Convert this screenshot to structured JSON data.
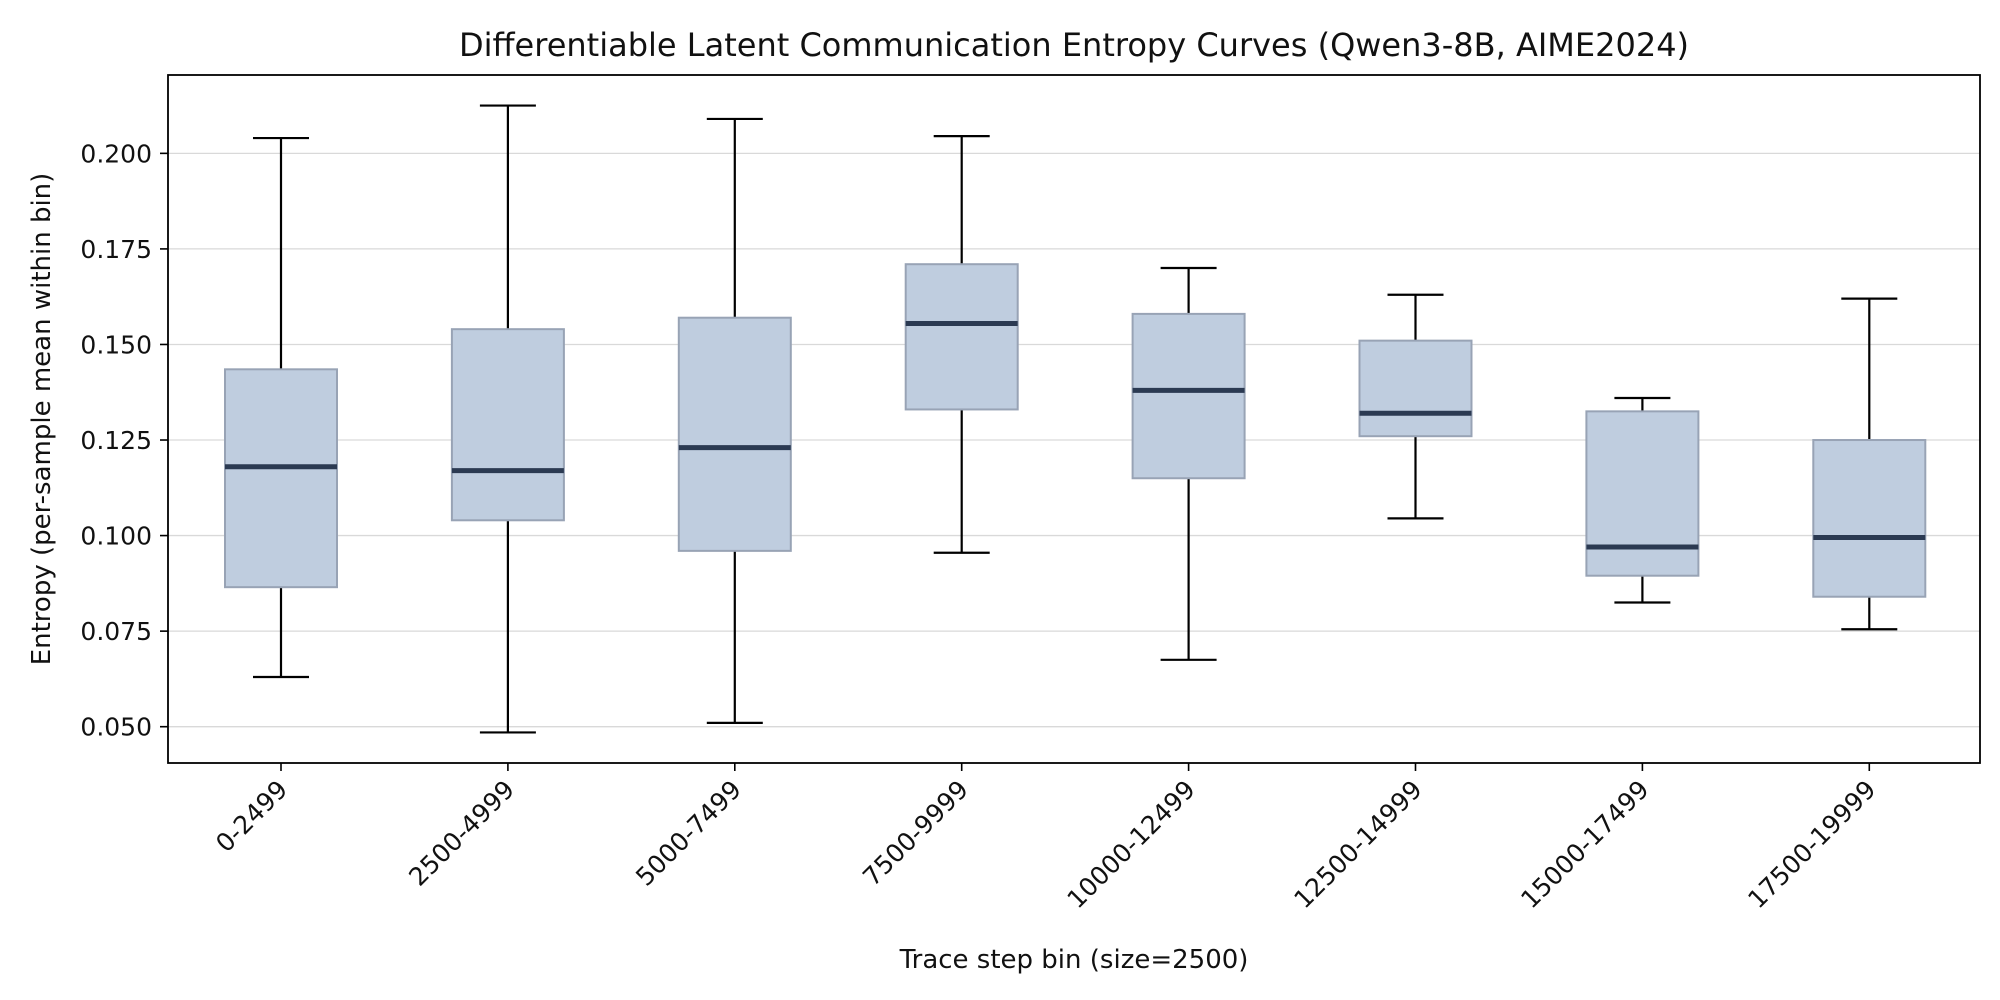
{
  "chart_data": {
    "type": "box",
    "title": "Differentiable Latent Communication Entropy Curves (Qwen3-8B, AIME2024)",
    "xlabel": "Trace step bin (size=2500)",
    "ylabel": "Entropy (per-sample mean within bin)",
    "ylim": [
      0.0405,
      0.2205
    ],
    "yticks": [
      0.05,
      0.075,
      0.1,
      0.125,
      0.15,
      0.175,
      0.2
    ],
    "ytick_labels": [
      "0.050",
      "0.075",
      "0.100",
      "0.125",
      "0.150",
      "0.175",
      "0.200"
    ],
    "grid": "y",
    "colors": {
      "box_fill": "#bfcddf",
      "box_edge": "#98a3b5",
      "median": "#2b3a52",
      "whisker": "#000000"
    },
    "categories": [
      "0-2499",
      "2500-4999",
      "5000-7499",
      "7500-9999",
      "10000-12499",
      "12500-14999",
      "15000-17499",
      "17500-19999"
    ],
    "boxes": [
      {
        "min": 0.063,
        "q1": 0.0865,
        "median": 0.118,
        "q3": 0.1435,
        "max": 0.204
      },
      {
        "min": 0.0485,
        "q1": 0.104,
        "median": 0.117,
        "q3": 0.154,
        "max": 0.2125
      },
      {
        "min": 0.051,
        "q1": 0.096,
        "median": 0.123,
        "q3": 0.157,
        "max": 0.209
      },
      {
        "min": 0.0955,
        "q1": 0.133,
        "median": 0.1555,
        "q3": 0.171,
        "max": 0.2045
      },
      {
        "min": 0.0675,
        "q1": 0.115,
        "median": 0.138,
        "q3": 0.158,
        "max": 0.17
      },
      {
        "min": 0.1045,
        "q1": 0.126,
        "median": 0.132,
        "q3": 0.151,
        "max": 0.163
      },
      {
        "min": 0.0825,
        "q1": 0.0895,
        "median": 0.097,
        "q3": 0.1325,
        "max": 0.136
      },
      {
        "min": 0.0755,
        "q1": 0.084,
        "median": 0.0995,
        "q3": 0.125,
        "max": 0.162
      }
    ]
  }
}
